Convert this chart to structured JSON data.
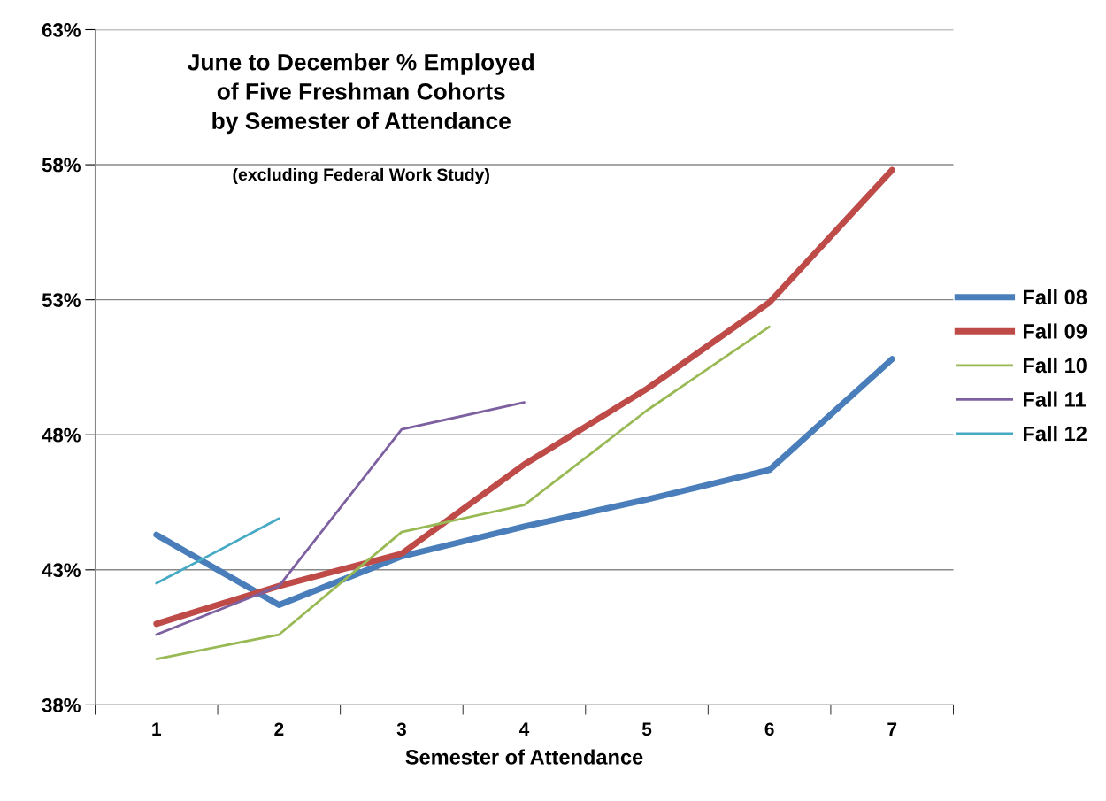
{
  "chart_data": {
    "type": "line",
    "title": "June to December % Employed\nof Five Freshman Cohorts\nby Semester of Attendance",
    "subtitle": "(excluding Federal Work Study)",
    "xlabel": "Semester of Attendance",
    "categories": [
      "1",
      "2",
      "3",
      "4",
      "5",
      "6",
      "7"
    ],
    "series": [
      {
        "name": "Fall 08",
        "color": "#4a7ebb",
        "values": [
          44.3,
          41.7,
          43.5,
          44.6,
          45.6,
          46.7,
          50.8
        ]
      },
      {
        "name": "Fall 09",
        "color": "#be4b48",
        "values": [
          41.0,
          42.4,
          43.6,
          46.9,
          49.7,
          52.9,
          57.8
        ]
      },
      {
        "name": "Fall 10",
        "color": "#98b954",
        "values": [
          39.7,
          40.6,
          44.4,
          45.4,
          48.9,
          52.0,
          null
        ]
      },
      {
        "name": "Fall 11",
        "color": "#7d60a0",
        "values": [
          40.6,
          42.4,
          48.2,
          49.2,
          null,
          null,
          null
        ]
      },
      {
        "name": "Fall 12",
        "color": "#46aac5",
        "values": [
          42.5,
          44.9,
          null,
          null,
          null,
          null,
          null
        ]
      }
    ],
    "ylim": [
      38,
      63
    ],
    "yticks": [
      {
        "value": 38,
        "label": "38%"
      },
      {
        "value": 43,
        "label": "43%"
      },
      {
        "value": 48,
        "label": "48%"
      },
      {
        "value": 53,
        "label": "53%"
      },
      {
        "value": 58,
        "label": "58%"
      },
      {
        "value": 63,
        "label": "63%"
      }
    ],
    "grid": "y",
    "legend": "right",
    "marker": "none",
    "line_style": "solid"
  }
}
